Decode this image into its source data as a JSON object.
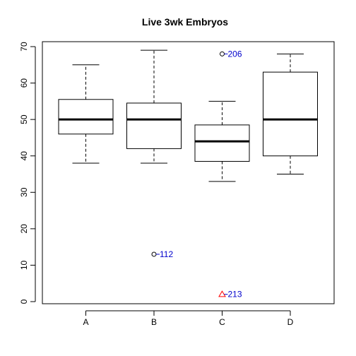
{
  "chart_data": {
    "type": "box",
    "title": "Live 3wk Embryos",
    "xlabel": "",
    "ylabel": "",
    "ylim": [
      0,
      70
    ],
    "yticks": [
      0,
      10,
      20,
      30,
      40,
      50,
      60,
      70
    ],
    "categories": [
      "A",
      "B",
      "C",
      "D"
    ],
    "boxes": [
      {
        "category": "A",
        "whisker_low": 38,
        "q1": 46,
        "median": 50,
        "q3": 55.5,
        "whisker_high": 65
      },
      {
        "category": "B",
        "whisker_low": 38,
        "q1": 42,
        "median": 50,
        "q3": 54.5,
        "whisker_high": 69
      },
      {
        "category": "C",
        "whisker_low": 33,
        "q1": 38.5,
        "median": 44,
        "q3": 48.5,
        "whisker_high": 55
      },
      {
        "category": "D",
        "whisker_low": 35,
        "q1": 40,
        "median": 50,
        "q3": 63,
        "whisker_high": 68
      }
    ],
    "outliers": [
      {
        "category": "B",
        "y": 13,
        "label": "112",
        "marker": "circle",
        "color": "#000000"
      },
      {
        "category": "C",
        "y": 68,
        "label": "206",
        "marker": "circle",
        "color": "#000000"
      },
      {
        "category": "C",
        "y": 2,
        "label": "213",
        "marker": "triangle",
        "color": "#ff0000"
      }
    ],
    "label_color": "#0000cc",
    "grid": false,
    "legend": "none"
  }
}
